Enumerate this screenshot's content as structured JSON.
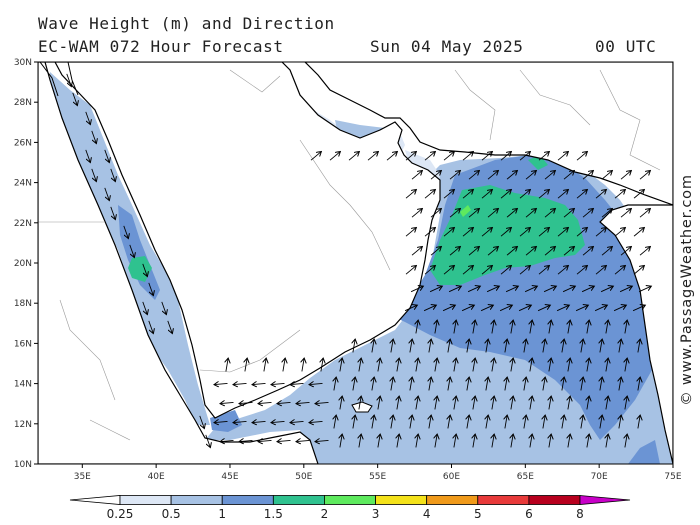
{
  "header": {
    "title_line1": "Wave Height (m) and Direction",
    "title_line2": "EC-WAM 072 Hour Forecast",
    "date": "Sun 04 May 2025",
    "time": "00 UTC"
  },
  "credit": "© www.PassageWeather.com",
  "map": {
    "lon_range": [
      32,
      75
    ],
    "lat_range": [
      10,
      30
    ],
    "x_ticks": [
      "35E",
      "40E",
      "45E",
      "50E",
      "55E",
      "60E",
      "65E",
      "70E",
      "75E"
    ],
    "y_ticks": [
      "30N",
      "28N",
      "26N",
      "24N",
      "22N",
      "20N",
      "18N",
      "16N",
      "14N",
      "12N",
      "10N"
    ],
    "land_color": "#ffffff",
    "coast_color": "#000000"
  },
  "legend": {
    "labels": [
      "0.25",
      "0.5",
      "1",
      "1.5",
      "2",
      "3",
      "4",
      "5",
      "6",
      "8"
    ],
    "colors": [
      "#ffffff",
      "#dde7f5",
      "#a7c2e4",
      "#6b94d4",
      "#2fc28f",
      "#5eea5e",
      "#f4e21a",
      "#f09a1a",
      "#e83a3a",
      "#b8001e",
      "#c800c8"
    ]
  }
}
